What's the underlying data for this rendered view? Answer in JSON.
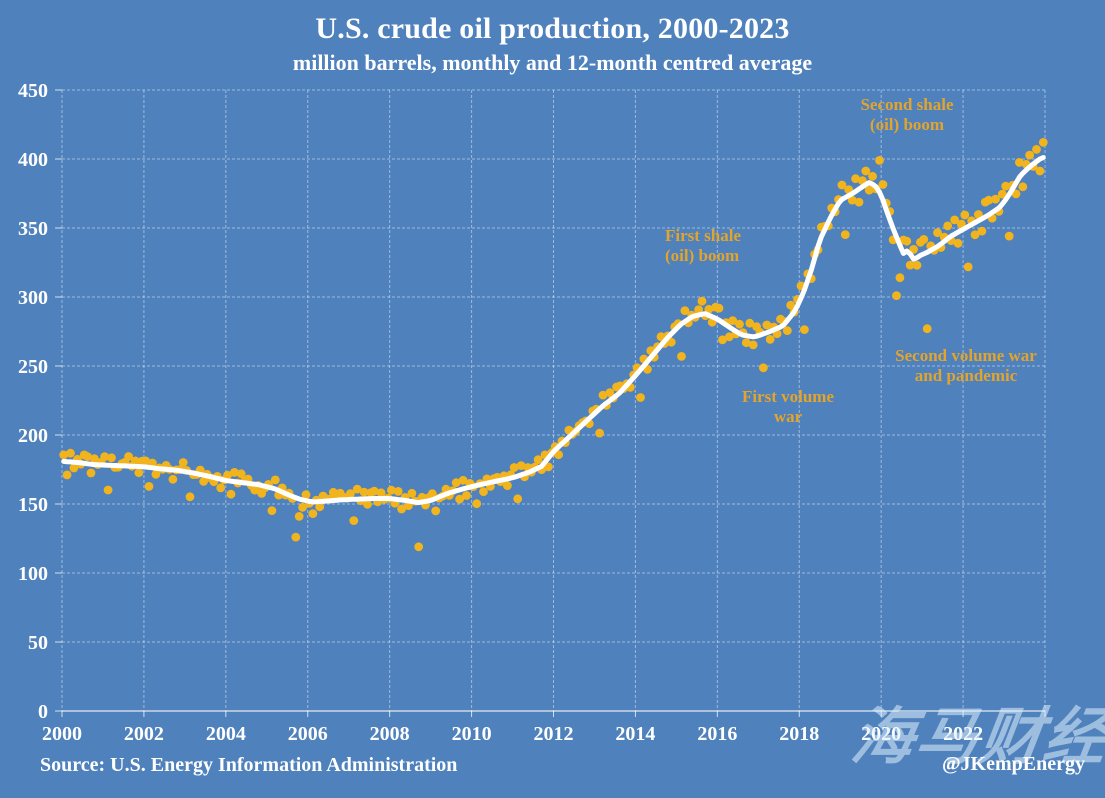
{
  "page": {
    "title": "U.S. crude oil production, 2000-2023",
    "subtitle": "million barrels, monthly and 12-month centred average",
    "source": "Source: U.S. Energy Information Administration",
    "credit": "@JKempEnergy",
    "watermark": "海马财经"
  },
  "colors": {
    "background": "#4f81bd",
    "grid": "rgba(255,255,255,0.45)",
    "axis": "rgba(255,255,255,0.75)",
    "monthly_dot": "#f2b41d",
    "average_line": "#ffffff",
    "annotation": "#e2a42c",
    "text": "#ffffff",
    "watermark": "rgba(224,240,253,0.55)"
  },
  "chart_data": {
    "type": "scatter",
    "title": "U.S. crude oil production, 2000-2023",
    "subtitle": "million barrels, monthly and 12-month centred average",
    "xlabel": "",
    "ylabel": "",
    "xlim": [
      2000,
      2024
    ],
    "ylim": [
      0,
      450
    ],
    "grid": true,
    "x_tick_labels": [
      "2000",
      "2002",
      "2004",
      "2006",
      "2008",
      "2010",
      "2012",
      "2014",
      "2016",
      "2018",
      "2020",
      "2022"
    ],
    "x_tick_years": [
      2000,
      2002,
      2004,
      2006,
      2008,
      2010,
      2012,
      2014,
      2016,
      2018,
      2020,
      2022
    ],
    "x_grid_years": [
      2000,
      2002,
      2004,
      2006,
      2008,
      2010,
      2012,
      2014,
      2016,
      2018,
      2020,
      2022,
      2024
    ],
    "y_ticks": [
      0,
      50,
      100,
      150,
      200,
      250,
      300,
      350,
      400,
      450
    ],
    "series": [
      {
        "name": "12-month centred average",
        "type": "line",
        "points": [
          [
            2000.0,
            181
          ],
          [
            2000.4,
            180
          ],
          [
            2000.8,
            178.5
          ],
          [
            2001.2,
            178
          ],
          [
            2001.6,
            177.5
          ],
          [
            2002.0,
            177
          ],
          [
            2002.4,
            175.5
          ],
          [
            2002.8,
            174.5
          ],
          [
            2003.2,
            172.5
          ],
          [
            2003.6,
            170
          ],
          [
            2004.0,
            167
          ],
          [
            2004.4,
            165.5
          ],
          [
            2004.8,
            164
          ],
          [
            2005.2,
            161
          ],
          [
            2005.5,
            157
          ],
          [
            2005.8,
            153.5
          ],
          [
            2006.1,
            151.5
          ],
          [
            2006.4,
            152
          ],
          [
            2006.8,
            153
          ],
          [
            2007.2,
            153.5
          ],
          [
            2007.6,
            154
          ],
          [
            2008.0,
            154
          ],
          [
            2008.4,
            152.5
          ],
          [
            2008.7,
            151
          ],
          [
            2009.0,
            152.5
          ],
          [
            2009.4,
            157.5
          ],
          [
            2009.8,
            161
          ],
          [
            2010.2,
            164
          ],
          [
            2010.6,
            166.5
          ],
          [
            2011.0,
            169
          ],
          [
            2011.4,
            173
          ],
          [
            2011.7,
            177
          ],
          [
            2012.0,
            188
          ],
          [
            2012.4,
            199
          ],
          [
            2012.8,
            210
          ],
          [
            2013.2,
            221
          ],
          [
            2013.6,
            230
          ],
          [
            2014.0,
            243
          ],
          [
            2014.4,
            257
          ],
          [
            2014.8,
            271
          ],
          [
            2015.1,
            280
          ],
          [
            2015.4,
            286
          ],
          [
            2015.7,
            288
          ],
          [
            2016.0,
            284
          ],
          [
            2016.3,
            278
          ],
          [
            2016.6,
            272.5
          ],
          [
            2016.9,
            271
          ],
          [
            2017.2,
            274
          ],
          [
            2017.6,
            279
          ],
          [
            2017.9,
            290
          ],
          [
            2018.1,
            303
          ],
          [
            2018.3,
            320
          ],
          [
            2018.5,
            341
          ],
          [
            2018.75,
            357
          ],
          [
            2019.0,
            370
          ],
          [
            2019.3,
            375
          ],
          [
            2019.55,
            380
          ],
          [
            2019.7,
            383
          ],
          [
            2019.85,
            381
          ],
          [
            2020.0,
            374
          ],
          [
            2020.15,
            361
          ],
          [
            2020.3,
            349
          ],
          [
            2020.45,
            338
          ],
          [
            2020.55,
            331
          ],
          [
            2020.65,
            334
          ],
          [
            2020.8,
            327
          ],
          [
            2020.95,
            330
          ],
          [
            2021.1,
            332
          ],
          [
            2021.4,
            337
          ],
          [
            2021.7,
            344
          ],
          [
            2022.0,
            349
          ],
          [
            2022.3,
            354
          ],
          [
            2022.6,
            359
          ],
          [
            2022.9,
            365
          ],
          [
            2023.1,
            373
          ],
          [
            2023.4,
            388
          ],
          [
            2023.65,
            395
          ],
          [
            2023.92,
            401
          ]
        ]
      },
      {
        "name": "monthly production",
        "type": "scatter",
        "months_span": [
          "2000-01",
          "2023-12"
        ],
        "model": "value = centred_average(t) * days_in_month / 30.44 + uniform_noise",
        "noise_half_range": 4.5,
        "seed": 11,
        "overrides": {
          "2005-09": 126,
          "2005-10": 141,
          "2008-09": 119,
          "2019-12": 399,
          "2020-02": 368,
          "2020-05": 301,
          "2020-06": 314,
          "2021-02": 277,
          "2023-12": 412
        }
      }
    ],
    "annotations": [
      {
        "id": "second-shale-boom",
        "line1": "Second shale",
        "line2": "(oil) boom",
        "x_year": 2020.6,
        "y_value": 441
      },
      {
        "id": "first-shale-boom",
        "line1": "First shale",
        "line2": "(oil) boom",
        "x_year": 2014.7,
        "y_value": 345
      },
      {
        "id": "first-volume-war",
        "line1": "First volume",
        "line2": "war",
        "x_year": 2017.7,
        "y_value": 229
      },
      {
        "id": "second-volume-war",
        "line1": "Second volume war",
        "line2": "and pandemic",
        "x_year": 2022.1,
        "y_value": 255
      }
    ],
    "legend": "none"
  }
}
